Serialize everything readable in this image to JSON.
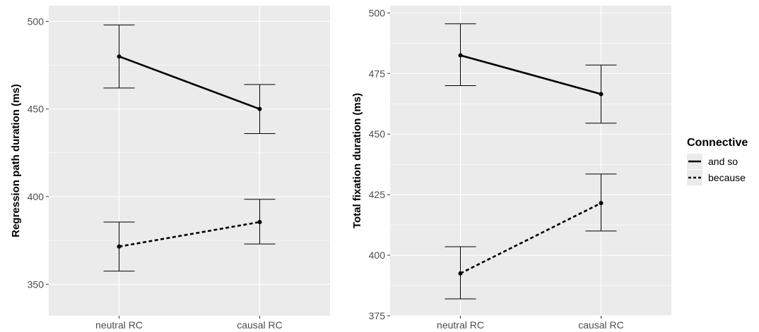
{
  "chart_data": [
    {
      "type": "line",
      "categories": [
        "neutral RC",
        "causal RC"
      ],
      "ylabel": "Regression path duration (ms)",
      "xlabel": "",
      "ylim": [
        332,
        509
      ],
      "yticks": [
        350,
        400,
        450,
        500
      ],
      "grid": true,
      "series": [
        {
          "name": "and so",
          "linetype": "solid",
          "values": [
            480,
            450
          ],
          "error_low": [
            462,
            436
          ],
          "error_high": [
            498,
            464
          ]
        },
        {
          "name": "because",
          "linetype": "dashed",
          "values": [
            371.5,
            385.5
          ],
          "error_low": [
            357.5,
            373
          ],
          "error_high": [
            385.5,
            398.5
          ]
        }
      ]
    },
    {
      "type": "line",
      "categories": [
        "neutral RC",
        "causal RC"
      ],
      "ylabel": "Total fixation duration (ms)",
      "xlabel": "",
      "ylim": [
        375,
        503
      ],
      "yticks": [
        375,
        400,
        425,
        450,
        475,
        500
      ],
      "grid": true,
      "series": [
        {
          "name": "and so",
          "linetype": "solid",
          "values": [
            482.5,
            466.5
          ],
          "error_low": [
            470,
            454.5
          ],
          "error_high": [
            495.5,
            478.5
          ]
        },
        {
          "name": "because",
          "linetype": "dashed",
          "values": [
            392.5,
            421.5
          ],
          "error_low": [
            382,
            410
          ],
          "error_high": [
            403.5,
            433.5
          ]
        }
      ]
    }
  ],
  "legend": {
    "title": "Connective",
    "position": "right",
    "items": [
      {
        "label": "and so",
        "linetype": "solid"
      },
      {
        "label": "because",
        "linetype": "dashed"
      }
    ]
  },
  "colors": {
    "panel_background": "#ebebeb",
    "grid": "#ffffff",
    "line": "#000000",
    "tick_text": "#4d4d4d"
  }
}
